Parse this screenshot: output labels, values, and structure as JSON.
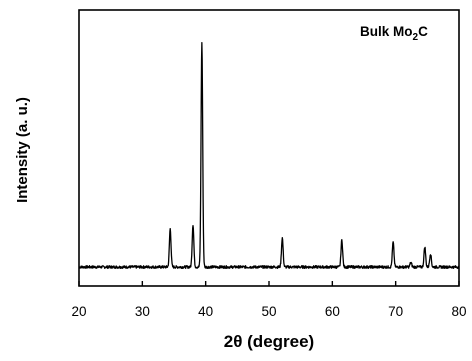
{
  "chart_data": {
    "type": "line",
    "title": "",
    "xlabel": "2θ (degree)",
    "ylabel": "Intensity (a. u.)",
    "xlim": [
      20,
      80
    ],
    "x_ticks": [
      20,
      30,
      40,
      50,
      60,
      70,
      80
    ],
    "y_ticks_shown": false,
    "grid": false,
    "legend": {
      "position": "top-right",
      "label_main": "Bulk Mo",
      "label_sub": "2",
      "label_tail": "C"
    },
    "series": [
      {
        "baseline": 0.0,
        "peaks": [
          {
            "x": 34.4,
            "intensity": 0.17
          },
          {
            "x": 38.0,
            "intensity": 0.19
          },
          {
            "x": 39.4,
            "intensity": 1.0
          },
          {
            "x": 52.1,
            "intensity": 0.13
          },
          {
            "x": 61.5,
            "intensity": 0.12
          },
          {
            "x": 69.6,
            "intensity": 0.11
          },
          {
            "x": 72.4,
            "intensity": 0.02
          },
          {
            "x": 74.6,
            "intensity": 0.09
          },
          {
            "x": 75.5,
            "intensity": 0.06
          }
        ]
      }
    ]
  }
}
